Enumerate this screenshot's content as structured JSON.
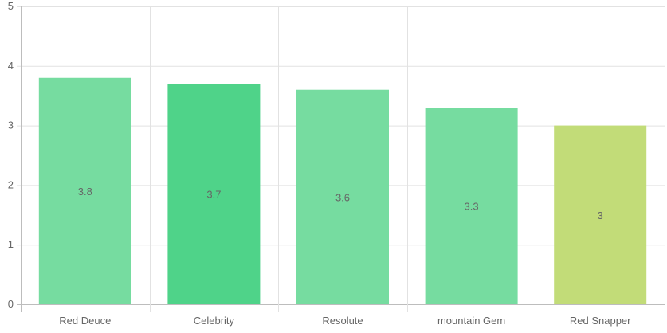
{
  "chart_data": {
    "type": "bar",
    "title": "",
    "xlabel": "",
    "ylabel": "",
    "categories": [
      "Red Deuce",
      "Celebrity",
      "Resolute",
      "mountain Gem",
      "Red Snapper"
    ],
    "values": [
      3.8,
      3.7,
      3.6,
      3.3,
      3
    ],
    "value_labels": [
      "3.8",
      "3.7",
      "3.6",
      "3.3",
      "3"
    ],
    "bar_colors": [
      "#76dca0",
      "#4fd389",
      "#76dca0",
      "#76dca0",
      "#c2dc78"
    ],
    "ylim": [
      0,
      5
    ],
    "yticks": [
      "0",
      "1",
      "2",
      "3",
      "4",
      "5"
    ],
    "grid": true,
    "legend": "none"
  }
}
